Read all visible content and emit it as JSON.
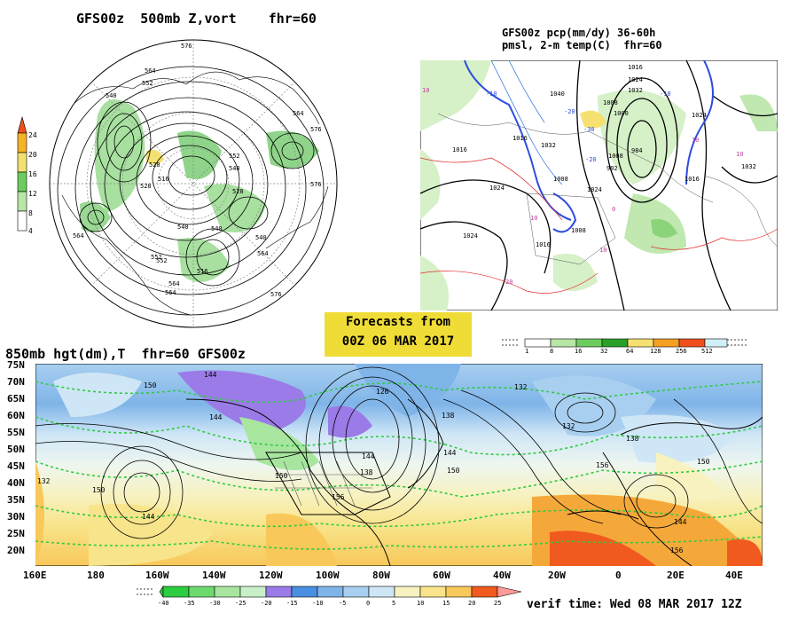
{
  "top_left": {
    "title": "GFS00z  500mb Z,vort    fhr=60",
    "vort_scale": {
      "labels": [
        "4",
        "8",
        "12",
        "16",
        "20",
        "24"
      ],
      "colors": [
        "#ffffff",
        "#b8e6a6",
        "#6ccc5e",
        "#f2e070",
        "#f5b428",
        "#f0501e"
      ]
    },
    "contour_labels": [
      "576",
      "564",
      "552",
      "540",
      "528",
      "516",
      "564",
      "576",
      "552",
      "540",
      "528",
      "576",
      "564",
      "540",
      "564",
      "552",
      "540",
      "576",
      "564",
      "516",
      "552",
      "528",
      "540",
      "564"
    ]
  },
  "top_right": {
    "title_line1": "GFS00z pcp(mm/dy) 36-60h",
    "title_line2": "pmsl, 2-m temp(C)  fhr=60",
    "pressure_labels": [
      "1016",
      "1024",
      "1032",
      "1040",
      "1008",
      "1000",
      "1016",
      "1024",
      "1032",
      "1008",
      "1016",
      "992",
      "984",
      "1008",
      "1016",
      "1024",
      "1024",
      "1032",
      "1016",
      "1024",
      "1008"
    ],
    "temp_labels": [
      "10",
      "-10",
      "-20",
      "-30",
      "-20",
      "10",
      "10",
      "0",
      "10",
      "20",
      "-10",
      "10"
    ],
    "precip_scale": {
      "labels": [
        "1",
        "8",
        "16",
        "32",
        "64",
        "128",
        "256",
        "512"
      ],
      "colors": [
        "#ffffff",
        "#b8e6a6",
        "#6ccc5e",
        "#2aa02a",
        "#f5e070",
        "#f5a020",
        "#f0501e",
        "#d0f0f8"
      ]
    }
  },
  "forecast_box": {
    "line1": "Forecasts from",
    "line2": "00Z 06 MAR 2017"
  },
  "bottom": {
    "title": "850mb hgt(dm),T  fhr=60 GFS00z",
    "latitudes": [
      "75N",
      "70N",
      "65N",
      "60N",
      "55N",
      "50N",
      "45N",
      "40N",
      "35N",
      "30N",
      "25N",
      "20N"
    ],
    "longitudes": [
      "160E",
      "180",
      "160W",
      "140W",
      "120W",
      "100W",
      "80W",
      "60W",
      "40W",
      "20W",
      "0",
      "20E",
      "40E"
    ],
    "height_labels": [
      "150",
      "144",
      "126",
      "138",
      "144",
      "132",
      "132",
      "138",
      "144",
      "156",
      "144",
      "150",
      "150",
      "132",
      "144",
      "150",
      "156",
      "138",
      "144",
      "150",
      "156"
    ],
    "temp_scale": {
      "labels": [
        "-40",
        "-35",
        "-30",
        "-25",
        "-20",
        "-15",
        "-10",
        "-5",
        "0",
        "5",
        "10",
        "15",
        "20",
        "25"
      ],
      "colors": [
        "#2ecc40",
        "#6cd96c",
        "#a8e6a0",
        "#c8f0c8",
        "#9b7be8",
        "#4a90e2",
        "#7fb4e8",
        "#a8cff0",
        "#cfe6f6",
        "#f7f2c0",
        "#f8e48a",
        "#f8c85a",
        "#f5a83a",
        "#f05a1e",
        "#ff9a9a"
      ]
    },
    "verif_time": "verif time: Wed 08 MAR 2017 12Z"
  }
}
